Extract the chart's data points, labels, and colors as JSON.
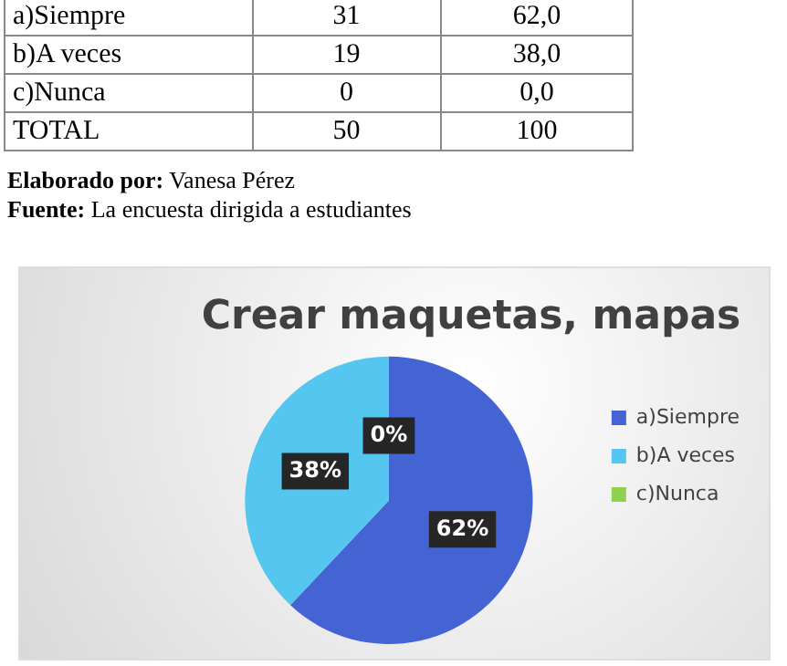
{
  "chart_data": {
    "type": "pie",
    "title": "Crear maquetas, mapas",
    "categories": [
      "a)Siempre",
      "b)A veces",
      "c)Nunca"
    ],
    "values": [
      62,
      38,
      0
    ],
    "colors": [
      "#4564d3",
      "#55c6ef",
      "#8fd14f"
    ],
    "value_labels": [
      "62%",
      "38%",
      "0%"
    ],
    "legend": "right",
    "annotations": [
      "a)Siempre\t31\t62,0",
      "b)A veces\t19\t38,0",
      "c)Nunca\t0\t0,0",
      "TOTAL\t50\t100",
      "Elaborado por: Vanesa Pérez",
      "Fuente: La encuesta dirigida a estudiantes"
    ]
  }
}
